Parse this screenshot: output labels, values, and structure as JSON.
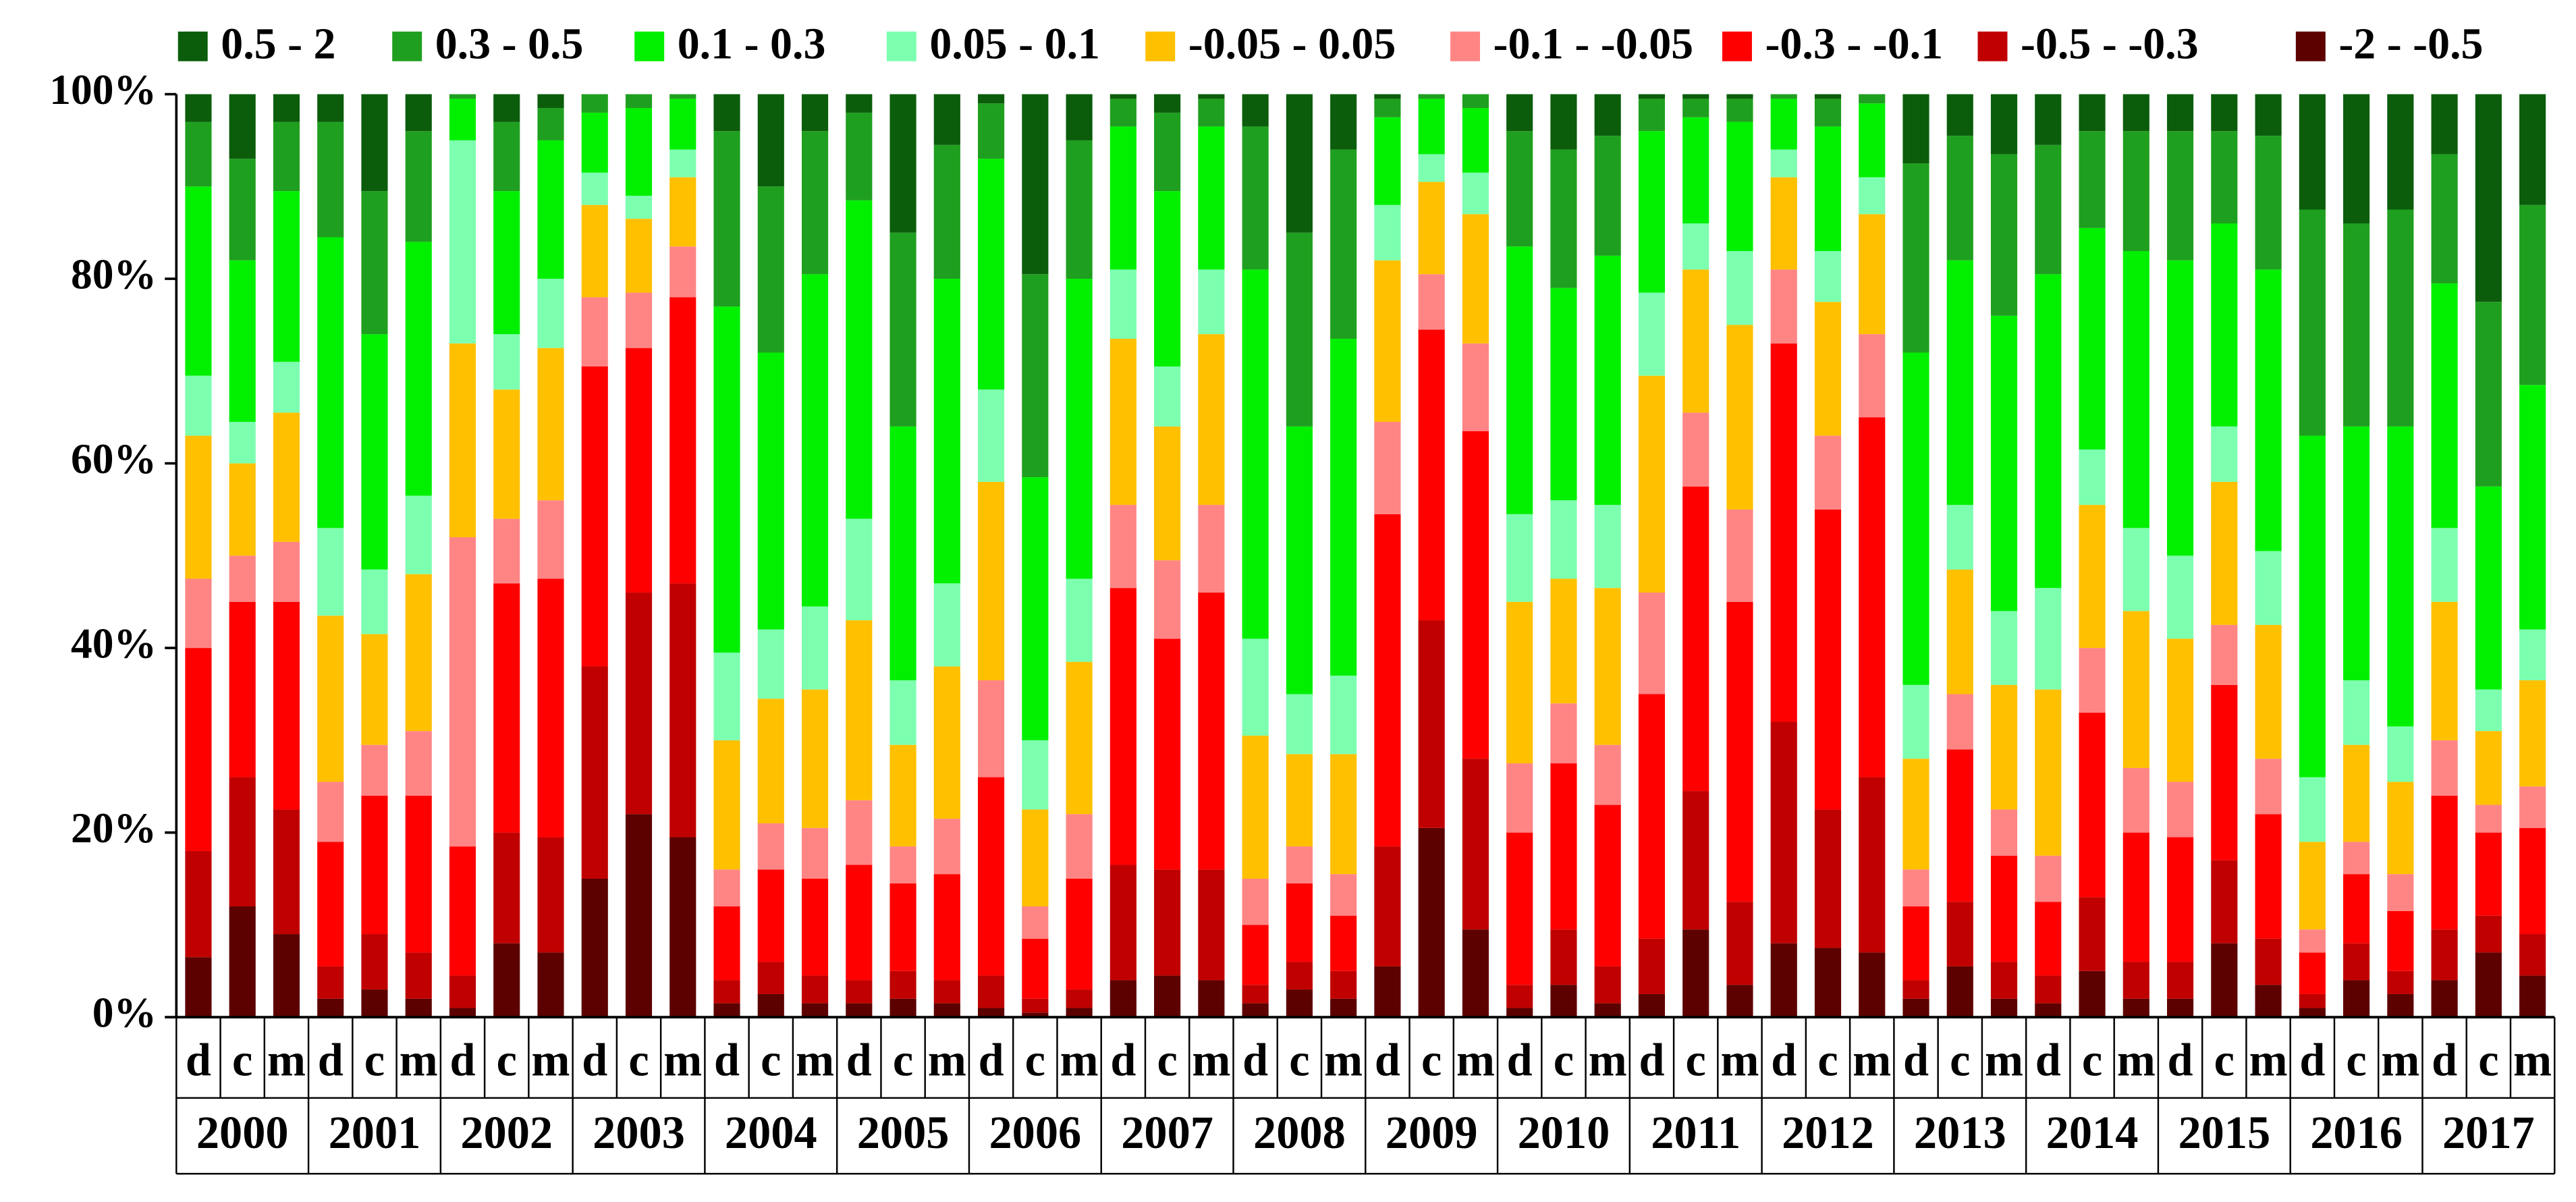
{
  "chart_data": {
    "type": "stacked_bar_100",
    "categories": [
      "d",
      "c",
      "m",
      "d",
      "c",
      "m",
      "d",
      "c",
      "m",
      "d",
      "c",
      "m",
      "d",
      "c",
      "m",
      "d",
      "c",
      "m",
      "d",
      "c",
      "m",
      "d",
      "c",
      "m",
      "d",
      "c",
      "m",
      "d",
      "c",
      "m",
      "d",
      "c",
      "m",
      "d",
      "c",
      "m",
      "d",
      "c",
      "m",
      "d",
      "c",
      "m",
      "d",
      "c",
      "m",
      "d",
      "c",
      "m",
      "d",
      "c",
      "m",
      "d",
      "c",
      "m"
    ],
    "groups": [
      "2000",
      "2001",
      "2002",
      "2003",
      "2004",
      "2005",
      "2006",
      "2007",
      "2008",
      "2009",
      "2010",
      "2011",
      "2012",
      "2013",
      "2014",
      "2015",
      "2016",
      "2017"
    ],
    "ylim": [
      0,
      100
    ],
    "yticks": [
      {
        "value": 0,
        "label": "0%"
      },
      {
        "value": 20,
        "label": "20%"
      },
      {
        "value": 40,
        "label": "40%"
      },
      {
        "value": 60,
        "label": "60%"
      },
      {
        "value": 80,
        "label": "80%"
      },
      {
        "value": 100,
        "label": "100%"
      }
    ],
    "grid": false,
    "legend": "top",
    "series": [
      {
        "name": "0.5 - 2",
        "color": "#0b5d0b",
        "values": [
          3,
          7,
          3,
          3,
          10.5,
          4,
          0,
          3,
          1.5,
          0,
          0,
          0,
          4,
          10,
          4,
          2,
          15,
          5.5,
          1,
          19.5,
          5,
          0.5,
          2,
          0.5,
          3.5,
          15,
          6,
          0.5,
          0,
          0,
          4,
          6,
          4.5,
          0.5,
          0.5,
          0.5,
          0,
          0.5,
          0,
          7.5,
          4.5,
          6.5,
          5.5,
          4,
          4,
          4,
          4,
          4.5,
          12.5,
          14,
          12.5,
          6.5,
          22.5,
          12
        ]
      },
      {
        "name": "0.3 - 0.5",
        "color": "#1f9f1f",
        "values": [
          7,
          11,
          7.5,
          12.5,
          15.5,
          12,
          0.5,
          7.5,
          3.5,
          2,
          1.5,
          0.5,
          19,
          18,
          15.5,
          9.5,
          21,
          14.5,
          6,
          22,
          15,
          3,
          8.5,
          3,
          15.5,
          21,
          20.5,
          2,
          0.5,
          1.5,
          12.5,
          15,
          13,
          3.5,
          2,
          2.5,
          0.5,
          3,
          1,
          20.5,
          13.5,
          17.5,
          14,
          10.5,
          13,
          14,
          10,
          14.5,
          24.5,
          22,
          23.5,
          14,
          20,
          19.5
        ]
      },
      {
        "name": "0.1 - 0.3",
        "color": "#00f000",
        "values": [
          20.5,
          17.5,
          18.5,
          31.5,
          25.5,
          27.5,
          4.5,
          15.5,
          15,
          6.5,
          9.5,
          5.5,
          37.5,
          30,
          36,
          34.5,
          27.5,
          33,
          25,
          28.5,
          32.5,
          15.5,
          19,
          15.5,
          40,
          29,
          36.5,
          9.5,
          6,
          7,
          29,
          23,
          27,
          17.5,
          11.5,
          14,
          5.5,
          13.5,
          8,
          36,
          26.5,
          32,
          34,
          24,
          30,
          32,
          22,
          30.5,
          37,
          27.5,
          32.5,
          26.5,
          22,
          26.5
        ]
      },
      {
        "name": "0.05 - 0.1",
        "color": "#7dffb0",
        "values": [
          6.5,
          4.5,
          5.5,
          9.5,
          7,
          8.5,
          22,
          6,
          7.5,
          3.5,
          2.5,
          3,
          9.5,
          7.5,
          9,
          11,
          7,
          9,
          10,
          7.5,
          9,
          7.5,
          6.5,
          7,
          10.5,
          6.5,
          8.5,
          6,
          3,
          4.5,
          9.5,
          8.5,
          9,
          9,
          5,
          8,
          3,
          5.5,
          4,
          8,
          7,
          8,
          11,
          6,
          9,
          9,
          6,
          8,
          7,
          7,
          6,
          8,
          4.5,
          5.5
        ]
      },
      {
        "name": "-0.05 - 0.05",
        "color": "#ffc000",
        "values": [
          15.5,
          10,
          14,
          18,
          12,
          17,
          21,
          14,
          16.5,
          10,
          8,
          7.5,
          14,
          13.5,
          15,
          19.5,
          11,
          16.5,
          21.5,
          10.5,
          16.5,
          18,
          14.5,
          18.5,
          15.5,
          10,
          13,
          17.5,
          10,
          14,
          17.5,
          13.5,
          17,
          23.5,
          15.5,
          20,
          10,
          14.5,
          13,
          12,
          13.5,
          13.5,
          18,
          15.5,
          17,
          15.5,
          15.5,
          14.5,
          9.5,
          10.5,
          10,
          15,
          8,
          11.5
        ]
      },
      {
        "name": "-0.1 - -0.05",
        "color": "#ff8585",
        "values": [
          7.5,
          5,
          6.5,
          6.5,
          5.5,
          7,
          33.5,
          7,
          8.5,
          7.5,
          6,
          5.5,
          4,
          5,
          5.5,
          7,
          4,
          6,
          10.5,
          3.5,
          7,
          9,
          8.5,
          9.5,
          5,
          4,
          4.5,
          10,
          6,
          9.5,
          7.5,
          6.5,
          6.5,
          11,
          8,
          10,
          8,
          8,
          9,
          4,
          6,
          5,
          5,
          7,
          7,
          6,
          6.5,
          6,
          2.5,
          3.5,
          4,
          6,
          3,
          4.5
        ]
      },
      {
        "name": "-0.3 - -0.1",
        "color": "#ff0000",
        "values": [
          22,
          19,
          22.5,
          13.5,
          15,
          17,
          14,
          27,
          28,
          32.5,
          26.5,
          31,
          8,
          10,
          10.5,
          12.5,
          9.5,
          11.5,
          21.5,
          6.5,
          12,
          30,
          25,
          30,
          6.5,
          8.5,
          6,
          36,
          31.5,
          35.5,
          16.5,
          18,
          17.5,
          26.5,
          33,
          32.5,
          41,
          32.5,
          39,
          8,
          16.5,
          11.5,
          8,
          20,
          14,
          13.5,
          19,
          13.5,
          4.5,
          7.5,
          6.5,
          14.5,
          9,
          11.5
        ]
      },
      {
        "name": "-0.5 - -0.3",
        "color": "#c00000",
        "values": [
          11.5,
          14,
          13.5,
          3.5,
          6,
          5,
          3.5,
          12,
          12.5,
          23,
          24,
          27.5,
          2.5,
          3.5,
          3,
          2.5,
          3,
          2.5,
          3.5,
          1.5,
          2,
          12.5,
          11.5,
          12,
          2,
          3,
          3,
          13,
          22.5,
          18.5,
          2.5,
          6,
          4,
          6,
          15,
          9,
          24,
          15,
          19,
          2,
          7,
          4,
          3,
          8,
          4,
          4,
          9,
          5,
          1.5,
          4,
          2.5,
          5.5,
          4,
          4.5
        ]
      },
      {
        "name": "-2 - -0.5",
        "color": "#5c0000",
        "values": [
          6.5,
          12,
          9,
          2,
          3,
          2,
          1,
          8,
          7,
          15,
          22,
          19.5,
          1.5,
          2.5,
          1.5,
          1.5,
          2,
          1.5,
          1,
          0.5,
          1,
          4,
          4.5,
          4,
          1.5,
          3,
          2,
          5.5,
          20.5,
          9.5,
          1,
          3.5,
          1.5,
          2.5,
          9.5,
          3.5,
          8,
          7.5,
          7,
          2,
          5.5,
          2,
          1.5,
          5,
          2,
          2,
          8,
          3.5,
          1,
          4,
          2.5,
          4,
          7,
          4.5
        ]
      }
    ]
  }
}
